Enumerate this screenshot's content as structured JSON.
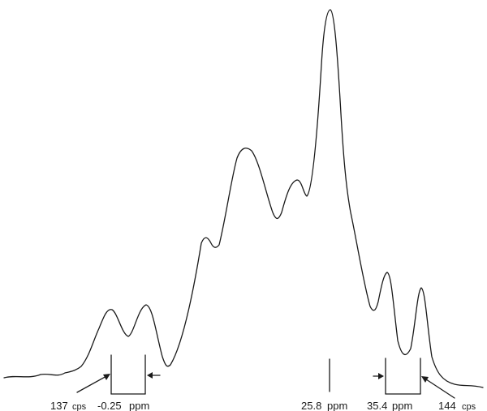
{
  "labels": {
    "left_cps": "137",
    "left_cps_unit": "cps",
    "left_ppm": "-0.25",
    "left_ppm_unit": "ppm",
    "center_ppm": "25.8",
    "center_ppm_unit": "ppm",
    "right_ppm": "35.4",
    "right_ppm_unit": "ppm",
    "right_cps": "144",
    "right_cps_unit": "cps"
  },
  "colors": {
    "ink": "#1a1a1a",
    "background": "#ffffff"
  }
}
